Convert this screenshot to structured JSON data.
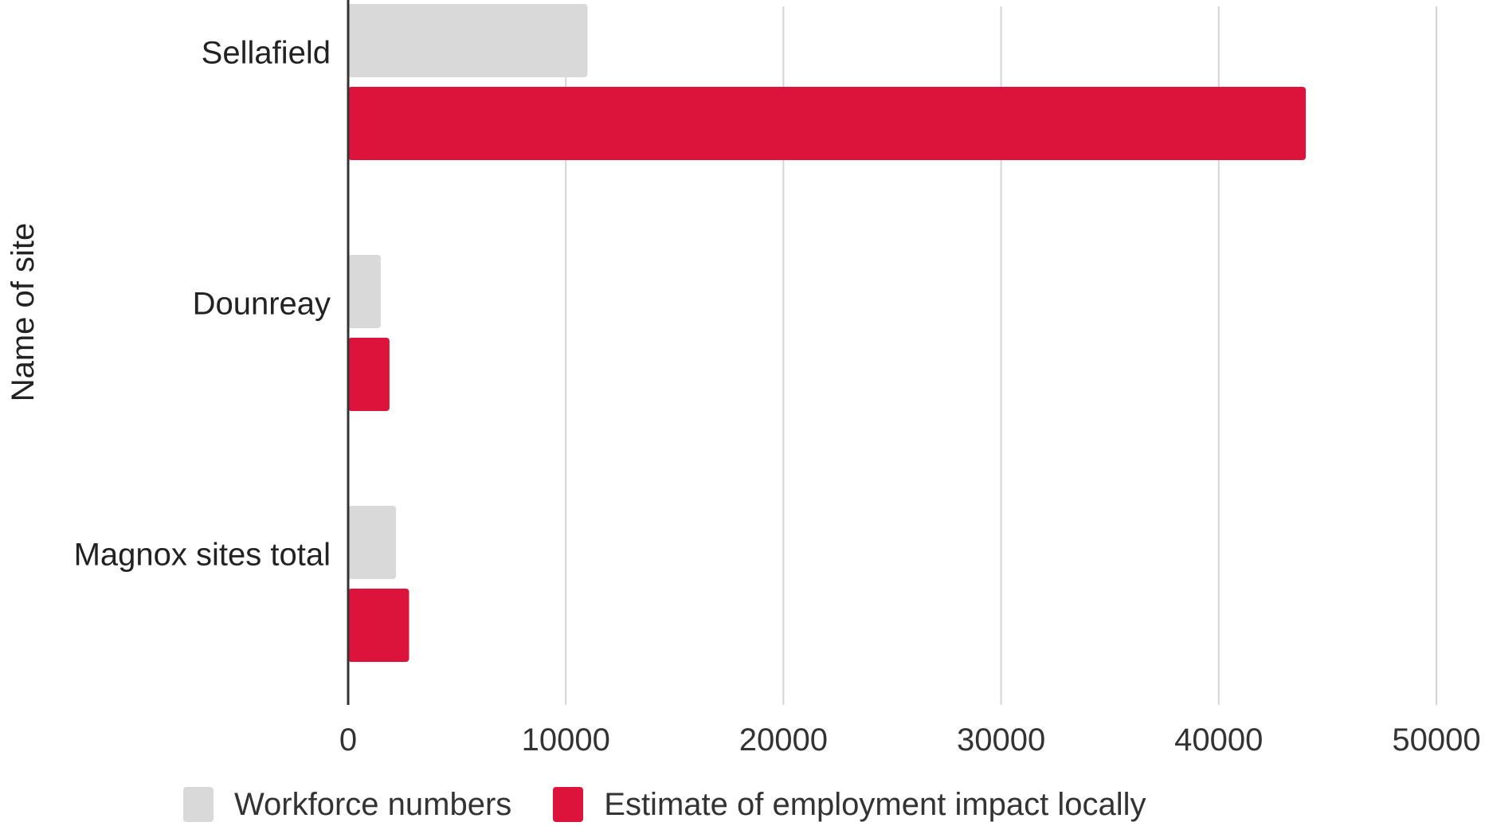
{
  "chart_data": {
    "type": "bar",
    "orientation": "horizontal",
    "title": "",
    "ylabel": "Name of site",
    "xlabel": "",
    "categories": [
      "Sellafield",
      "Dounreay",
      "Magnox sites total"
    ],
    "series": [
      {
        "name": "Workforce numbers",
        "color": "#d9d9d9",
        "values": [
          11000,
          1500,
          2200
        ]
      },
      {
        "name": "Estimate of employment impact locally",
        "color": "#dc143c",
        "values": [
          44000,
          1900,
          2800
        ]
      }
    ],
    "xlim": [
      0,
      50000
    ],
    "xticks": [
      0,
      10000,
      20000,
      30000,
      40000,
      50000
    ],
    "grid": true,
    "legend": "bottom"
  }
}
